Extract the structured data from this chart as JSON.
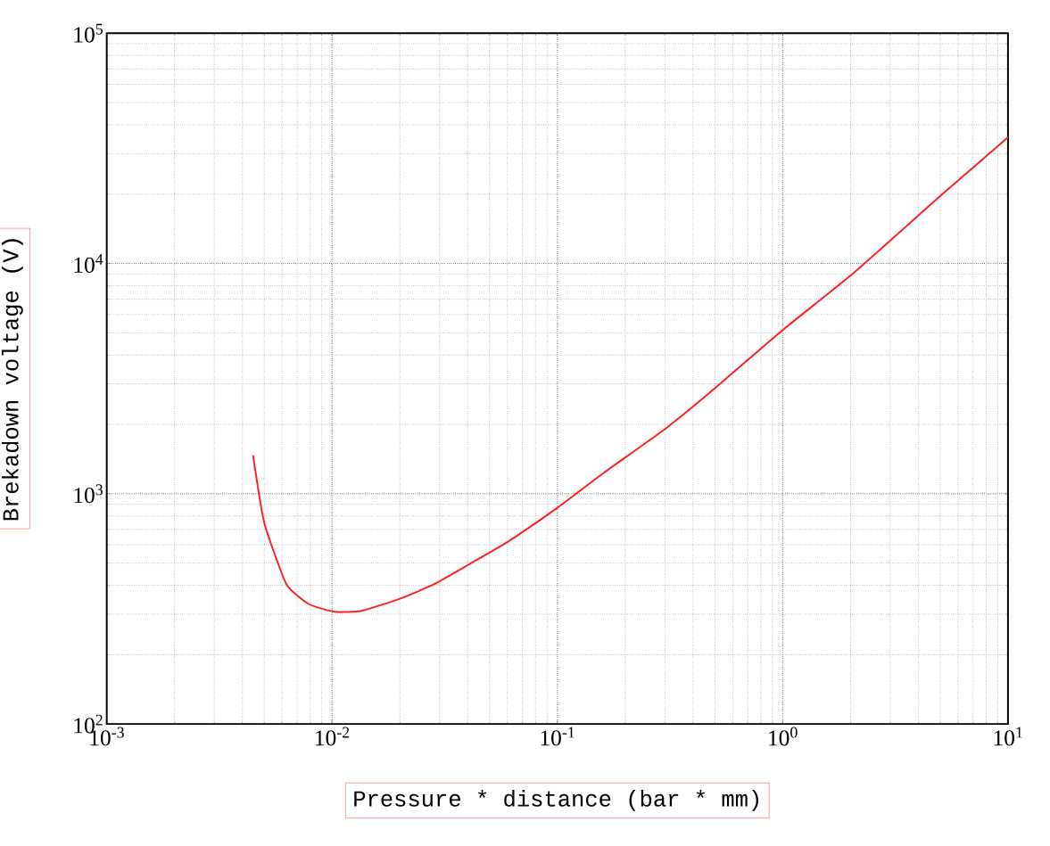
{
  "chart_data": {
    "type": "line",
    "xlabel": "Pressure * distance (bar * mm)",
    "ylabel": "Brekadown voltage (V)",
    "log": "xy",
    "grid": true,
    "xlim": [
      0.001,
      10
    ],
    "ylim": [
      100,
      100000
    ],
    "xticks": [
      {
        "value": 0.001,
        "label": "10$^{-3}$"
      },
      {
        "value": 0.01,
        "label": "10$^{-2}$"
      },
      {
        "value": 0.1,
        "label": "10$^{-1}$"
      },
      {
        "value": 1,
        "label": "10$^{0}$"
      },
      {
        "value": 10,
        "label": "10$^{1}$"
      }
    ],
    "yticks": [
      {
        "value": 100,
        "label": "10$^{2}$"
      },
      {
        "value": 1000,
        "label": "10$^{3}$"
      },
      {
        "value": 10000,
        "label": "10$^{4}$"
      },
      {
        "value": 100000,
        "label": "10$^{5}$"
      }
    ],
    "x": [
      0.00446,
      0.005,
      0.00626,
      0.00787,
      0.0103,
      0.0135,
      0.02,
      0.0286,
      0.0409,
      0.0601,
      0.1,
      0.161,
      0.308,
      0.514,
      1,
      2.04,
      5.1,
      10
    ],
    "series": [
      {
        "color": "#ff2020",
        "values": [
          1470,
          749,
          406,
          332,
          307,
          310,
          350,
          406,
          496,
          618,
          869,
          1234,
          1945,
          2937,
          5140,
          9000,
          19950,
          35300
        ]
      }
    ]
  }
}
